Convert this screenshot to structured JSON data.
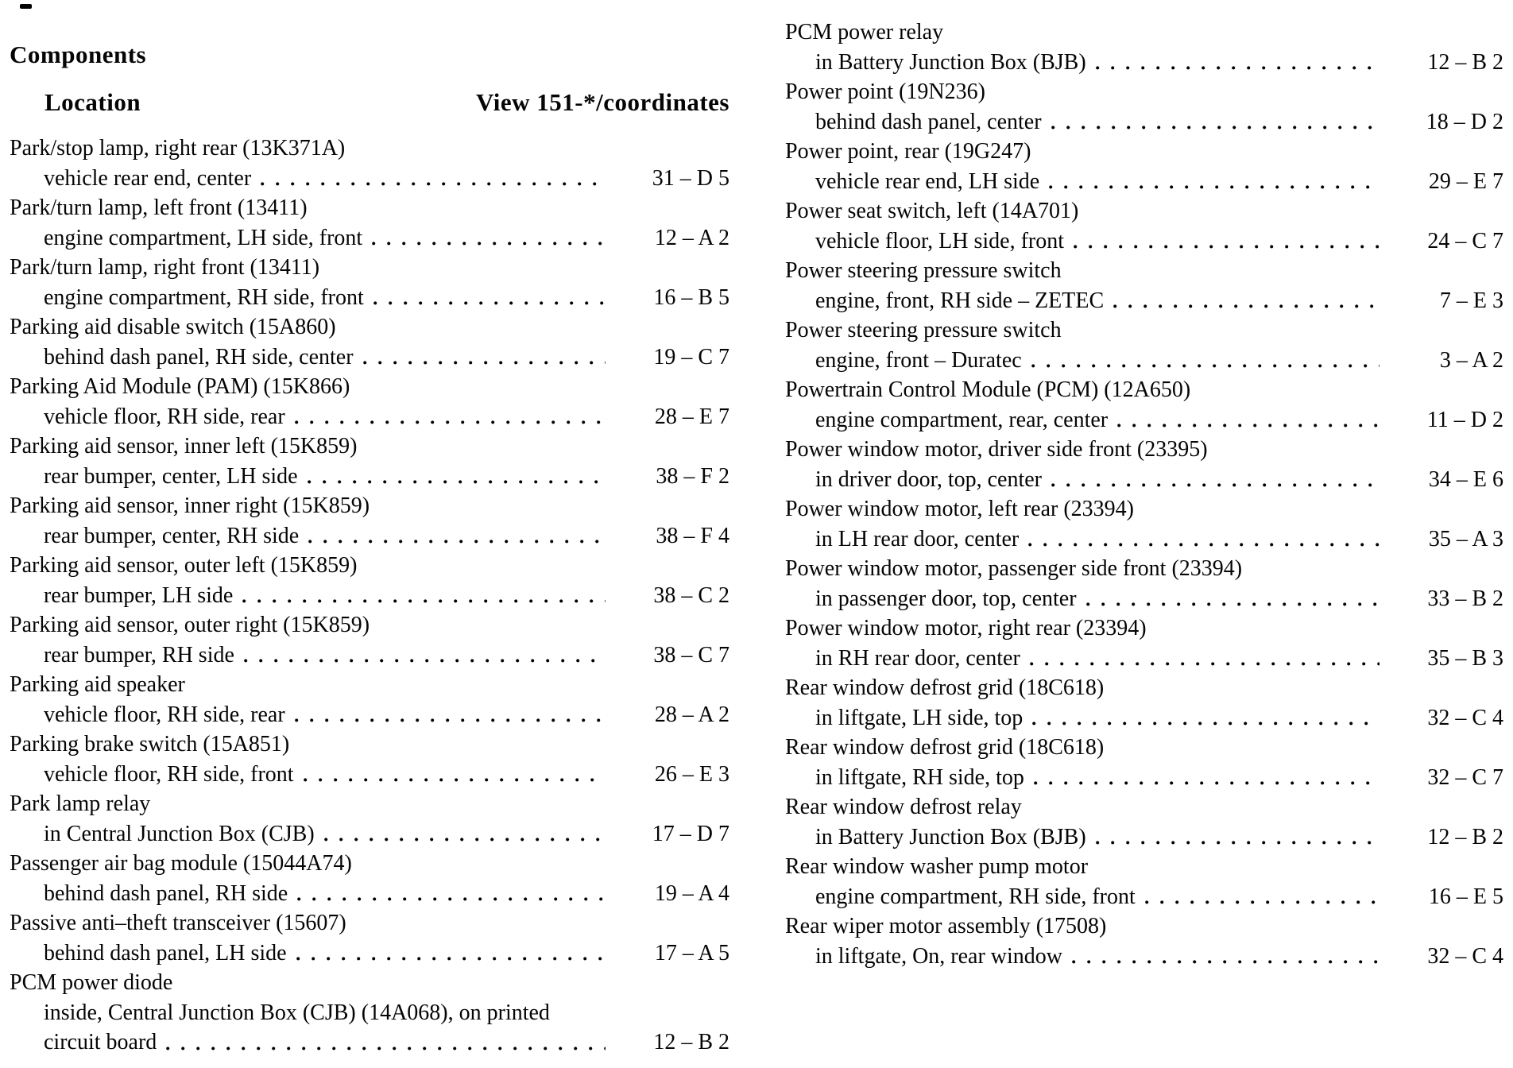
{
  "header": {
    "components_label": "Components",
    "location_label": "Location",
    "view_label": "View 151-*/coordinates"
  },
  "columns": {
    "left": [
      {
        "name": "Park/stop lamp, right rear (13K371A)",
        "location": "vehicle rear end, center",
        "coord": "31 – D 5"
      },
      {
        "name": "Park/turn lamp, left front (13411)",
        "location": "engine compartment, LH side, front",
        "coord": "12 – A 2"
      },
      {
        "name": "Park/turn lamp, right front (13411)",
        "location": "engine compartment, RH side, front",
        "coord": "16 – B 5"
      },
      {
        "name": "Parking aid disable switch (15A860)",
        "location": "behind dash panel, RH side, center",
        "coord": "19 – C 7"
      },
      {
        "name": "Parking Aid Module (PAM) (15K866)",
        "location": "vehicle floor, RH side, rear",
        "coord": "28 – E 7"
      },
      {
        "name": "Parking aid sensor, inner left (15K859)",
        "location": "rear bumper, center, LH side",
        "coord": "38 – F 2"
      },
      {
        "name": "Parking aid sensor, inner right (15K859)",
        "location": "rear bumper, center, RH side",
        "coord": "38 – F 4"
      },
      {
        "name": "Parking aid sensor, outer left (15K859)",
        "location": "rear bumper, LH side",
        "coord": "38 – C 2"
      },
      {
        "name": "Parking aid sensor, outer right (15K859)",
        "location": "rear bumper, RH side",
        "coord": "38 – C 7"
      },
      {
        "name": "Parking aid speaker",
        "location": "vehicle floor, RH side, rear",
        "coord": "28 – A 2"
      },
      {
        "name": "Parking brake switch (15A851)",
        "location": "vehicle floor, RH side, front",
        "coord": "26 – E 3"
      },
      {
        "name": "Park lamp relay",
        "location": "in Central Junction Box (CJB)",
        "coord": "17 – D 7"
      },
      {
        "name": "Passenger air bag module (15044A74)",
        "location": "behind dash panel, RH side",
        "coord": "19 – A 4"
      },
      {
        "name": "Passive anti–theft transceiver (15607)",
        "location": "behind dash panel, LH side",
        "coord": "17 – A 5"
      },
      {
        "name": "PCM power diode",
        "location_pre": "inside, Central Junction Box (CJB) (14A068), on printed",
        "location": "circuit board",
        "coord": "12 – B 2"
      }
    ],
    "right": [
      {
        "name": "PCM power relay",
        "location": "in Battery Junction Box (BJB)",
        "coord": "12 – B 2"
      },
      {
        "name": "Power point (19N236)",
        "location": "behind dash panel, center",
        "coord": "18 – D 2"
      },
      {
        "name": "Power point, rear (19G247)",
        "location": "vehicle rear end, LH side",
        "coord": "29 – E 7"
      },
      {
        "name": "Power seat switch, left (14A701)",
        "location": "vehicle floor, LH side, front",
        "coord": "24 – C 7"
      },
      {
        "name": "Power steering pressure switch",
        "location": "engine, front, RH side – ZETEC",
        "coord": "7 – E 3"
      },
      {
        "name": "Power steering pressure switch",
        "location": "engine, front – Duratec",
        "coord": "3 – A 2"
      },
      {
        "name": "Powertrain Control Module (PCM) (12A650)",
        "location": "engine compartment, rear, center",
        "coord": "11 – D 2"
      },
      {
        "name": "Power window motor, driver side front (23395)",
        "location": "in driver door, top, center",
        "coord": "34 – E 6"
      },
      {
        "name": "Power window motor, left rear (23394)",
        "location": "in LH rear door, center",
        "coord": "35 – A 3"
      },
      {
        "name": "Power window motor, passenger side front (23394)",
        "location": "in passenger door, top, center",
        "coord": "33 – B 2"
      },
      {
        "name": "Power window motor, right rear (23394)",
        "location": "in RH rear door, center",
        "coord": "35 – B 3"
      },
      {
        "name": "Rear window defrost grid (18C618)",
        "location": "in liftgate, LH side, top",
        "coord": "32 – C 4"
      },
      {
        "name": "Rear window defrost grid (18C618)",
        "location": "in liftgate, RH side, top",
        "coord": "32 – C 7"
      },
      {
        "name": "Rear window defrost relay",
        "location": "in Battery Junction Box (BJB)",
        "coord": "12 – B 2"
      },
      {
        "name": "Rear window washer pump motor",
        "location": "engine compartment, RH side, front",
        "coord": "16 – E 5"
      },
      {
        "name": "Rear wiper motor assembly (17508)",
        "location": "in liftgate, On, rear window",
        "coord": "32 – C 4"
      }
    ]
  }
}
